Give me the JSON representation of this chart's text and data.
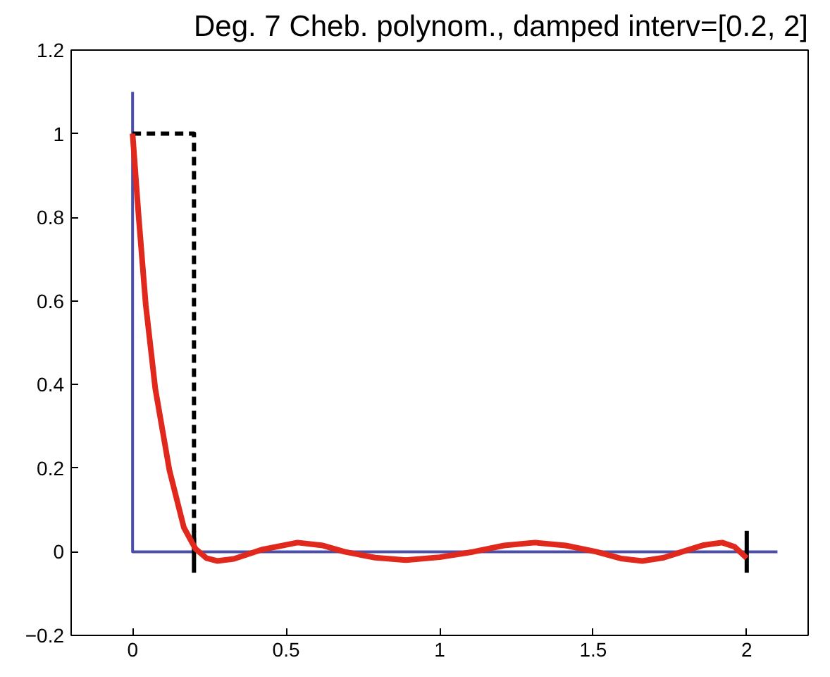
{
  "chart_data": {
    "type": "line",
    "title": "Deg. 7 Cheb. polynom., damped interv=[0.2, 2]",
    "xlim": [
      -0.2,
      2.2
    ],
    "ylim": [
      -0.2,
      1.2
    ],
    "xticks": [
      0,
      0.5,
      1,
      1.5,
      2
    ],
    "yticks": [
      {
        "value": -0.2,
        "label": "−0.2"
      },
      0,
      0.2,
      0.4,
      0.6,
      0.8,
      1,
      1.2
    ],
    "grid": false,
    "marker": "none",
    "series": [
      {
        "color": "#4b4fa8",
        "line_style": "solid",
        "x": [
          0,
          0,
          2.1
        ],
        "values": [
          1.1,
          0,
          0
        ]
      },
      {
        "color": "#000000",
        "line_style": "dashed",
        "x": [
          0,
          0.2,
          0.2
        ],
        "values": [
          1,
          1,
          0
        ]
      },
      {
        "color": "#000000",
        "line_style": "solid",
        "x": [
          0.2,
          0.2
        ],
        "values": [
          -0.05,
          0.05
        ]
      },
      {
        "color": "#000000",
        "line_style": "solid",
        "x": [
          2,
          2
        ],
        "values": [
          -0.05,
          0.05
        ]
      },
      {
        "color": "#e0281c",
        "line_style": "solid",
        "x": [
          0,
          0.02,
          0.043,
          0.074,
          0.12,
          0.167,
          0.205,
          0.24,
          0.275,
          0.33,
          0.42,
          0.537,
          0.62,
          0.69,
          0.79,
          0.89,
          1.0,
          1.11,
          1.21,
          1.31,
          1.41,
          1.51,
          1.59,
          1.66,
          1.73,
          1.79,
          1.86,
          1.92,
          1.96,
          2.0
        ],
        "values": [
          1,
          0.8,
          0.59,
          0.39,
          0.195,
          0.058,
          0.007,
          -0.015,
          -0.022,
          -0.017,
          0.005,
          0.022,
          0.015,
          0,
          -0.014,
          -0.02,
          -0.013,
          0,
          0.015,
          0.022,
          0.015,
          0,
          -0.016,
          -0.022,
          -0.014,
          0,
          0.016,
          0.022,
          0.012,
          -0.015
        ]
      }
    ]
  }
}
